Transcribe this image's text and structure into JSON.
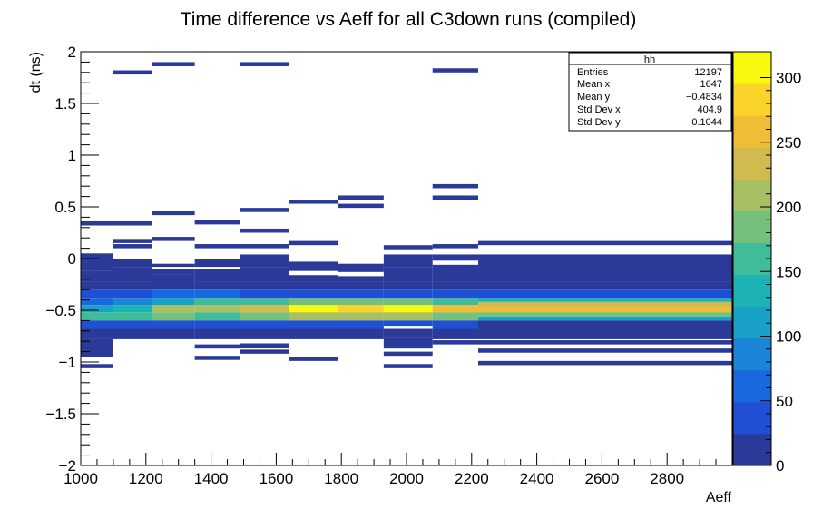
{
  "chart_data": {
    "type": "heatmap",
    "title": "Time difference vs Aeff for all C3down runs (compiled)",
    "xlabel": "Aeff",
    "ylabel": "dt (ns)",
    "xlim": [
      1000,
      3000
    ],
    "ylim": [
      -2,
      2
    ],
    "x_ticks": [
      "1000",
      "1200",
      "1400",
      "1600",
      "1800",
      "2000",
      "2200",
      "2400",
      "2600",
      "2800"
    ],
    "y_ticks": [
      "2",
      "1.5",
      "1",
      "0.5",
      "0",
      "−0.5",
      "−1",
      "−1.5",
      "−2"
    ],
    "z_range": [
      0,
      320
    ],
    "z_ticks": [
      "0",
      "50",
      "100",
      "150",
      "200",
      "250",
      "300"
    ],
    "color_scale": [
      "#2b3a99",
      "#1f4fd2",
      "#1a68e0",
      "#1b86d8",
      "#1aa1c7",
      "#1db3b3",
      "#3fbd9a",
      "#76c07d",
      "#a9bf63",
      "#d1bb4f",
      "#f0bd36",
      "#fbd429",
      "#f9f80f"
    ],
    "x_bins": [
      1000,
      1100,
      1220,
      1350,
      1490,
      1640,
      1790,
      1930,
      2080,
      2220,
      3000
    ],
    "cells": [
      [
        1000,
        1100,
        0.32,
        0.36,
        1
      ],
      [
        1000,
        1100,
        -0.12,
        0.05,
        1
      ],
      [
        1000,
        1100,
        -0.22,
        -0.12,
        2
      ],
      [
        1000,
        1100,
        -0.3,
        -0.22,
        4
      ],
      [
        1000,
        1100,
        -0.38,
        -0.3,
        25
      ],
      [
        1000,
        1100,
        -0.45,
        -0.38,
        60
      ],
      [
        1000,
        1100,
        -0.52,
        -0.45,
        110
      ],
      [
        1000,
        1100,
        -0.6,
        -0.52,
        150
      ],
      [
        1000,
        1100,
        -0.68,
        -0.6,
        40
      ],
      [
        1000,
        1100,
        -0.78,
        -0.68,
        4
      ],
      [
        1000,
        1100,
        -0.95,
        -0.78,
        1
      ],
      [
        1000,
        1100,
        -1.06,
        -1.02,
        1
      ],
      [
        1100,
        1220,
        1.78,
        1.82,
        1
      ],
      [
        1100,
        1220,
        0.32,
        0.36,
        1
      ],
      [
        1100,
        1220,
        0.15,
        0.19,
        1
      ],
      [
        1100,
        1220,
        0.1,
        0.14,
        1
      ],
      [
        1100,
        1220,
        -0.08,
        0.0,
        1
      ],
      [
        1100,
        1220,
        -0.22,
        -0.08,
        2
      ],
      [
        1100,
        1220,
        -0.3,
        -0.22,
        5
      ],
      [
        1100,
        1220,
        -0.38,
        -0.3,
        40
      ],
      [
        1100,
        1220,
        -0.45,
        -0.38,
        80
      ],
      [
        1100,
        1220,
        -0.52,
        -0.45,
        140
      ],
      [
        1100,
        1220,
        -0.6,
        -0.52,
        170
      ],
      [
        1100,
        1220,
        -0.68,
        -0.6,
        30
      ],
      [
        1100,
        1220,
        -0.78,
        -0.68,
        3
      ],
      [
        1220,
        1350,
        1.86,
        1.9,
        1
      ],
      [
        1220,
        1350,
        0.42,
        0.46,
        1
      ],
      [
        1220,
        1350,
        0.17,
        0.21,
        1
      ],
      [
        1220,
        1350,
        -0.08,
        -0.05,
        1
      ],
      [
        1220,
        1350,
        -0.15,
        -0.1,
        2
      ],
      [
        1220,
        1350,
        -0.3,
        -0.15,
        3
      ],
      [
        1220,
        1350,
        -0.38,
        -0.3,
        50
      ],
      [
        1220,
        1350,
        -0.45,
        -0.38,
        100
      ],
      [
        1220,
        1350,
        -0.52,
        -0.45,
        200
      ],
      [
        1220,
        1350,
        -0.6,
        -0.52,
        180
      ],
      [
        1220,
        1350,
        -0.68,
        -0.6,
        30
      ],
      [
        1220,
        1350,
        -0.78,
        -0.68,
        3
      ],
      [
        1350,
        1490,
        0.33,
        0.37,
        1
      ],
      [
        1350,
        1490,
        0.1,
        0.14,
        1
      ],
      [
        1350,
        1490,
        -0.08,
        0.0,
        1
      ],
      [
        1350,
        1490,
        -0.22,
        -0.1,
        2
      ],
      [
        1350,
        1490,
        -0.3,
        -0.22,
        4
      ],
      [
        1350,
        1490,
        -0.38,
        -0.3,
        60
      ],
      [
        1350,
        1490,
        -0.45,
        -0.38,
        150
      ],
      [
        1350,
        1490,
        -0.52,
        -0.45,
        215
      ],
      [
        1350,
        1490,
        -0.6,
        -0.52,
        170
      ],
      [
        1350,
        1490,
        -0.68,
        -0.6,
        30
      ],
      [
        1350,
        1490,
        -0.78,
        -0.68,
        3
      ],
      [
        1350,
        1490,
        -0.87,
        -0.83,
        1
      ],
      [
        1350,
        1490,
        -0.98,
        -0.94,
        1
      ],
      [
        1490,
        1640,
        1.86,
        1.9,
        1
      ],
      [
        1490,
        1640,
        0.45,
        0.49,
        1
      ],
      [
        1490,
        1640,
        0.25,
        0.29,
        1
      ],
      [
        1490,
        1640,
        0.1,
        0.14,
        1
      ],
      [
        1490,
        1640,
        -0.08,
        0.04,
        1
      ],
      [
        1490,
        1640,
        -0.22,
        -0.08,
        2
      ],
      [
        1490,
        1640,
        -0.3,
        -0.22,
        5
      ],
      [
        1490,
        1640,
        -0.38,
        -0.3,
        40
      ],
      [
        1490,
        1640,
        -0.45,
        -0.38,
        170
      ],
      [
        1490,
        1640,
        -0.52,
        -0.45,
        230
      ],
      [
        1490,
        1640,
        -0.6,
        -0.52,
        175
      ],
      [
        1490,
        1640,
        -0.68,
        -0.6,
        30
      ],
      [
        1490,
        1640,
        -0.78,
        -0.68,
        3
      ],
      [
        1490,
        1640,
        -0.86,
        -0.82,
        1
      ],
      [
        1490,
        1640,
        -0.92,
        -0.88,
        1
      ],
      [
        1640,
        1790,
        0.53,
        0.57,
        1
      ],
      [
        1640,
        1790,
        0.13,
        0.17,
        1
      ],
      [
        1640,
        1790,
        -0.12,
        -0.03,
        1
      ],
      [
        1640,
        1790,
        -0.22,
        -0.16,
        1
      ],
      [
        1640,
        1790,
        -0.3,
        -0.22,
        5
      ],
      [
        1640,
        1790,
        -0.38,
        -0.3,
        40
      ],
      [
        1640,
        1790,
        -0.45,
        -0.38,
        180
      ],
      [
        1640,
        1790,
        -0.52,
        -0.45,
        300
      ],
      [
        1640,
        1790,
        -0.6,
        -0.52,
        200
      ],
      [
        1640,
        1790,
        -0.68,
        -0.6,
        25
      ],
      [
        1640,
        1790,
        -0.78,
        -0.68,
        3
      ],
      [
        1640,
        1790,
        -0.99,
        -0.95,
        1
      ],
      [
        1790,
        1930,
        0.57,
        0.61,
        1
      ],
      [
        1790,
        1930,
        0.49,
        0.53,
        1
      ],
      [
        1790,
        1930,
        -0.13,
        -0.05,
        1
      ],
      [
        1790,
        1930,
        -0.22,
        -0.17,
        1
      ],
      [
        1790,
        1930,
        -0.3,
        -0.22,
        5
      ],
      [
        1790,
        1930,
        -0.38,
        -0.3,
        40
      ],
      [
        1790,
        1930,
        -0.45,
        -0.38,
        190
      ],
      [
        1790,
        1930,
        -0.52,
        -0.45,
        290
      ],
      [
        1790,
        1930,
        -0.6,
        -0.52,
        210
      ],
      [
        1790,
        1930,
        -0.68,
        -0.6,
        25
      ],
      [
        1790,
        1930,
        -0.78,
        -0.68,
        3
      ],
      [
        1930,
        2080,
        0.09,
        0.13,
        1
      ],
      [
        1930,
        2080,
        -0.08,
        0.04,
        1
      ],
      [
        1930,
        2080,
        -0.22,
        -0.08,
        2
      ],
      [
        1930,
        2080,
        -0.3,
        -0.22,
        5
      ],
      [
        1930,
        2080,
        -0.38,
        -0.3,
        40
      ],
      [
        1930,
        2080,
        -0.45,
        -0.38,
        190
      ],
      [
        1930,
        2080,
        -0.52,
        -0.45,
        318
      ],
      [
        1930,
        2080,
        -0.6,
        -0.52,
        210
      ],
      [
        1930,
        2080,
        -0.65,
        -0.6,
        25
      ],
      [
        1930,
        2080,
        -0.76,
        -0.68,
        3
      ],
      [
        1930,
        2080,
        -0.87,
        -0.76,
        1
      ],
      [
        1930,
        2080,
        -0.94,
        -0.9,
        1
      ],
      [
        1930,
        2080,
        -1.06,
        -1.02,
        1
      ],
      [
        2080,
        2220,
        1.8,
        1.84,
        1
      ],
      [
        2080,
        2220,
        0.68,
        0.72,
        1
      ],
      [
        2080,
        2220,
        0.57,
        0.61,
        1
      ],
      [
        2080,
        2220,
        0.1,
        0.14,
        1
      ],
      [
        2080,
        2220,
        -0.02,
        0.04,
        1
      ],
      [
        2080,
        2220,
        -0.22,
        -0.06,
        2
      ],
      [
        2080,
        2220,
        -0.3,
        -0.22,
        5
      ],
      [
        2080,
        2220,
        -0.38,
        -0.3,
        40
      ],
      [
        2080,
        2220,
        -0.45,
        -0.38,
        160
      ],
      [
        2080,
        2220,
        -0.52,
        -0.45,
        270
      ],
      [
        2080,
        2220,
        -0.6,
        -0.52,
        180
      ],
      [
        2080,
        2220,
        -0.68,
        -0.6,
        25
      ],
      [
        2080,
        2220,
        -0.78,
        -0.68,
        3
      ],
      [
        2080,
        2220,
        -0.83,
        -0.79,
        1
      ],
      [
        2220,
        3000,
        0.13,
        0.17,
        1
      ],
      [
        2220,
        3000,
        -0.22,
        0.04,
        1
      ],
      [
        2220,
        3000,
        -0.3,
        -0.22,
        5
      ],
      [
        2220,
        3000,
        -0.38,
        -0.3,
        40
      ],
      [
        2220,
        3000,
        -0.42,
        -0.38,
        130
      ],
      [
        2220,
        3000,
        -0.47,
        -0.42,
        230
      ],
      [
        2220,
        3000,
        -0.52,
        -0.47,
        270
      ],
      [
        2220,
        3000,
        -0.56,
        -0.52,
        190
      ],
      [
        2220,
        3000,
        -0.6,
        -0.56,
        110
      ],
      [
        2220,
        3000,
        -0.68,
        -0.6,
        20
      ],
      [
        2220,
        3000,
        -0.78,
        -0.68,
        3
      ],
      [
        2220,
        3000,
        -0.83,
        -0.79,
        1
      ],
      [
        2220,
        3000,
        -0.91,
        -0.87,
        1
      ],
      [
        2220,
        3000,
        -1.03,
        -0.99,
        1
      ]
    ],
    "stats_box": {
      "title": "hh",
      "rows": [
        {
          "label": "Entries",
          "value": "12197"
        },
        {
          "label": "Mean x",
          "value": "1647"
        },
        {
          "label": "Mean y",
          "value": "−0.4834"
        },
        {
          "label": "Std Dev x",
          "value": "404.9"
        },
        {
          "label": "Std Dev y",
          "value": "0.1044"
        }
      ]
    }
  }
}
